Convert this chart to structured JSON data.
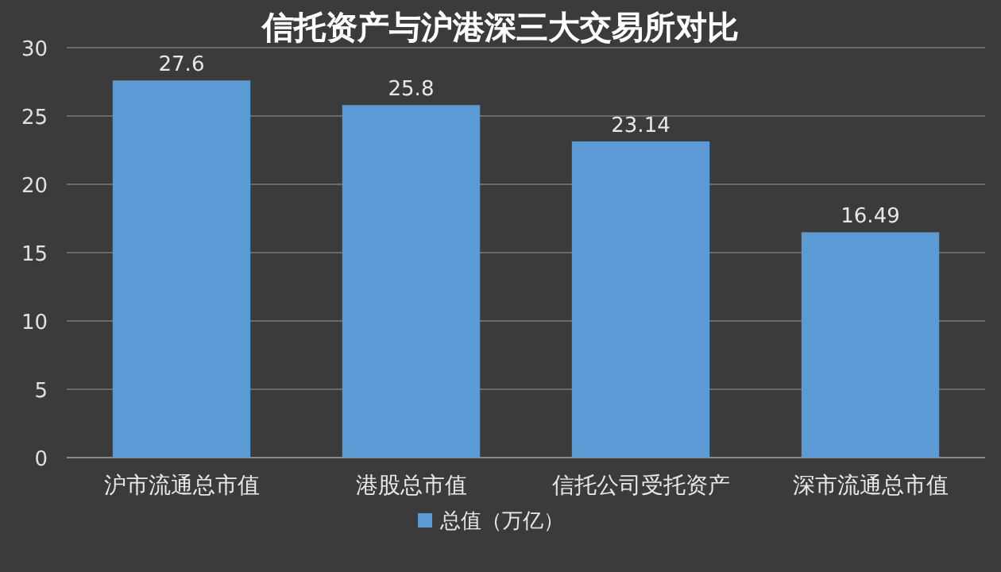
{
  "chart_data": {
    "type": "bar",
    "title": "信托资产与沪港深三大交易所对比",
    "categories": [
      "沪市流通总市值",
      "港股总市值",
      "信托公司受托资产",
      "深市流通总市值"
    ],
    "series": [
      {
        "name": "总值（万亿）",
        "color": "#5b9bd5",
        "values": [
          27.6,
          25.8,
          23.14,
          16.49
        ]
      }
    ],
    "ylim": [
      0,
      30
    ],
    "yticks": [
      0,
      5,
      10,
      15,
      20,
      25,
      30
    ],
    "grid": "y",
    "legend": "bottom",
    "data_labels": true
  }
}
